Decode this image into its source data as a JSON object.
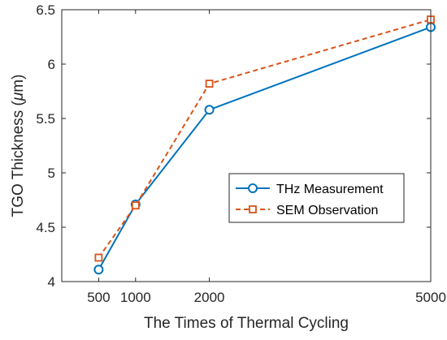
{
  "chart_data": {
    "type": "line",
    "title": "",
    "xlabel": "The Times of Thermal Cycling",
    "ylabel_prefix": "TGO Thickness (",
    "ylabel_mu": "μ",
    "ylabel_suffix": "m)",
    "x_ticks": [
      500,
      1000,
      2000,
      5000
    ],
    "x_tick_labels": [
      "500",
      "1000",
      "2000",
      "5000"
    ],
    "y_ticks": [
      4,
      4.5,
      5,
      5.5,
      6,
      6.5
    ],
    "y_tick_labels": [
      "4",
      "4.5",
      "5",
      "5.5",
      "6",
      "6.5"
    ],
    "xlim": [
      0,
      5000
    ],
    "ylim": [
      4,
      6.5
    ],
    "grid": false,
    "legend_position": "center-right",
    "series": [
      {
        "name": "THz Measurement",
        "x": [
          500,
          1000,
          2000,
          5000
        ],
        "y": [
          4.11,
          4.71,
          5.58,
          6.34
        ],
        "color": "#0072BD",
        "line_style": "solid",
        "marker": "circle"
      },
      {
        "name": "SEM Observation",
        "x": [
          500,
          1000,
          2000,
          5000
        ],
        "y": [
          4.22,
          4.7,
          5.82,
          6.41
        ],
        "color": "#D95319",
        "line_style": "dashed",
        "marker": "square"
      }
    ]
  }
}
